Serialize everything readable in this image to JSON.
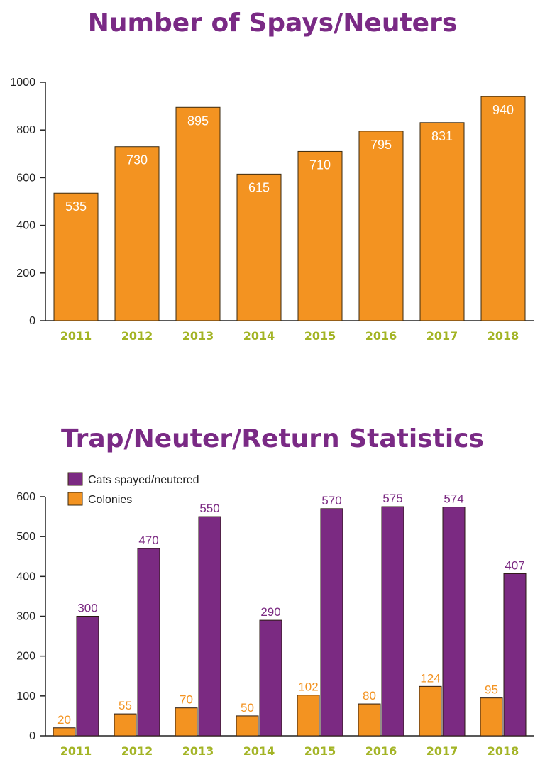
{
  "colors": {
    "title": "#7a2a85",
    "orange": "#f39321",
    "purple": "#7b2a82",
    "category": "#a3b425",
    "axis": "#222222"
  },
  "chart_data": [
    {
      "type": "bar",
      "title": "Number of Spays/Neuters",
      "categories": [
        "2011",
        "2012",
        "2013",
        "2014",
        "2015",
        "2016",
        "2017",
        "2018"
      ],
      "values": [
        535,
        730,
        895,
        615,
        710,
        795,
        831,
        940
      ],
      "yticks": [
        "0",
        "200",
        "400",
        "600",
        "800",
        "1000"
      ],
      "ylim": [
        0,
        1000
      ],
      "grid": false,
      "data_labels": "inside-top"
    },
    {
      "type": "bar",
      "title": "Trap/Neuter/Return Statistics",
      "categories": [
        "2011",
        "2012",
        "2013",
        "2014",
        "2015",
        "2016",
        "2017",
        "2018"
      ],
      "series": [
        {
          "name": "Colonies",
          "values": [
            20,
            55,
            70,
            50,
            102,
            80,
            124,
            95
          ]
        },
        {
          "name": "Cats spayed/neutered",
          "values": [
            300,
            470,
            550,
            290,
            570,
            575,
            574,
            407
          ]
        }
      ],
      "legend": [
        "Cats spayed/neutered",
        "Colonies"
      ],
      "legend_position": "top-left",
      "yticks": [
        "0",
        "100",
        "200",
        "300",
        "400",
        "500",
        "600"
      ],
      "ylim": [
        0,
        600
      ],
      "grid": false,
      "data_labels": "above"
    }
  ]
}
